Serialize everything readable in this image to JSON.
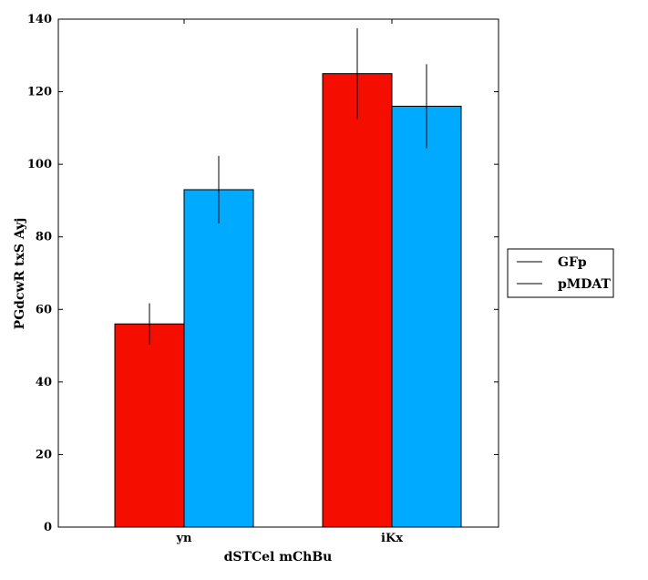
{
  "chart_data": {
    "type": "bar",
    "categories": [
      "yn",
      "iKx"
    ],
    "series": [
      {
        "name": "GFp",
        "color": "#f50d00",
        "values": [
          56,
          125
        ],
        "errors": [
          5.7,
          12.5
        ]
      },
      {
        "name": "pMDAT",
        "color": "#00aaff",
        "values": [
          93,
          116
        ],
        "errors": [
          9.3,
          11.6
        ]
      }
    ],
    "xlabel": "dSTCel mChBu",
    "ylabel": "PGdcwR txS Ayj",
    "ylim": [
      0,
      140
    ],
    "yticks": [
      0,
      20,
      40,
      60,
      80,
      100,
      120,
      140
    ],
    "grid": false,
    "legend_position": "right"
  }
}
